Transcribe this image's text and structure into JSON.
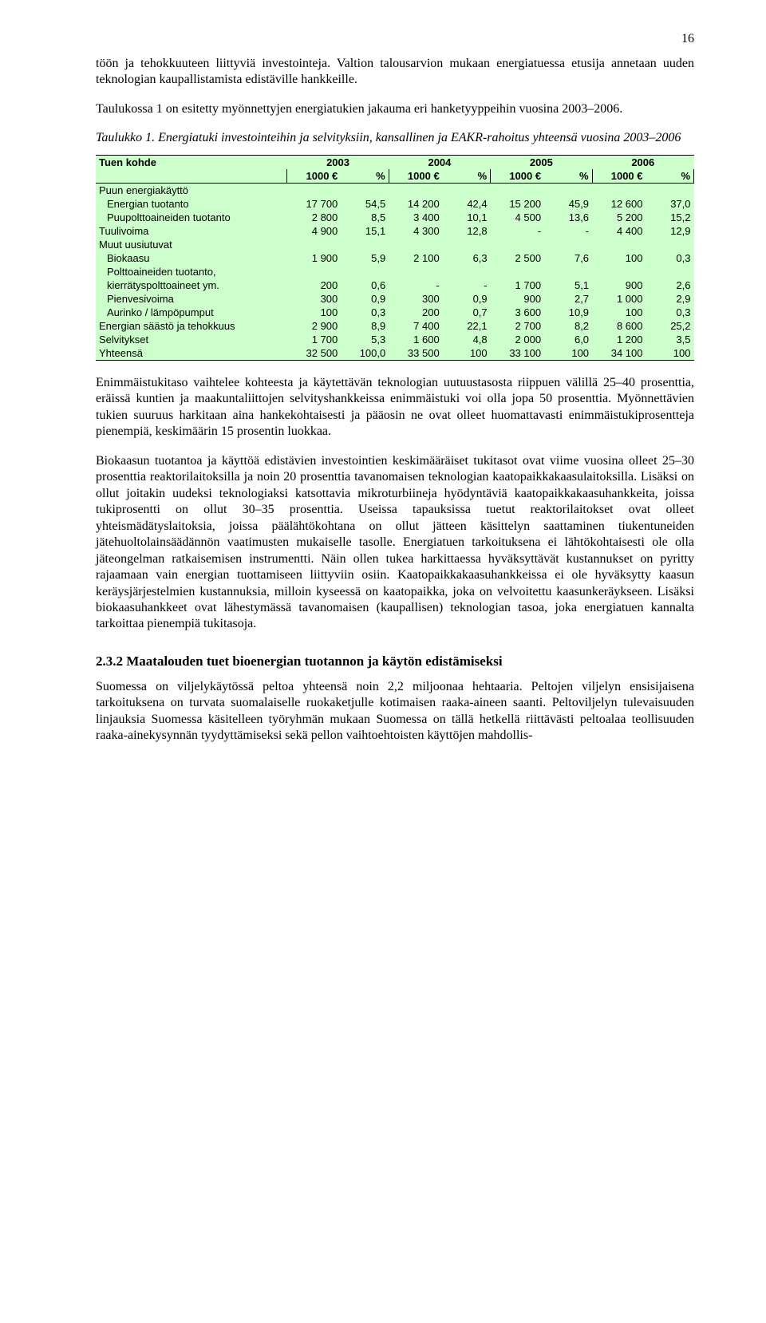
{
  "page_number": "16",
  "para1": "töön ja tehokkuuteen liittyviä investointeja. Valtion talousarvion mukaan energiatuessa etusija annetaan uuden teknologian kaupallistamista edistäville hankkeille.",
  "para2": "Taulukossa 1 on esitetty myönnettyjen energiatukien jakauma eri hanketyyppeihin vuosina 2003–2006.",
  "table_caption": "Taulukko 1. Energiatuki investointeihin ja selvityksiin, kansallinen ja EAKR-rahoitus yhteensä vuosina 2003–2006",
  "table": {
    "type": "table",
    "background_color": "#ccffcc",
    "border_color": "#000000",
    "font_family": "Arial",
    "font_size_pt": 10,
    "header_row1": {
      "c0": "Tuen kohde",
      "c1": "2003",
      "c2": "2004",
      "c3": "2005",
      "c4": "2006"
    },
    "header_row2": {
      "a": "1000 €",
      "b": "%"
    },
    "rows": [
      {
        "label": "Puun energiakäyttö",
        "indent": 0,
        "bold": false,
        "v": [
          "",
          "",
          "",
          "",
          "",
          "",
          "",
          ""
        ]
      },
      {
        "label": "Energian tuotanto",
        "indent": 1,
        "bold": false,
        "v": [
          "17 700",
          "54,5",
          "14 200",
          "42,4",
          "15 200",
          "45,9",
          "12 600",
          "37,0"
        ]
      },
      {
        "label": "Puupolttoaineiden tuotanto",
        "indent": 1,
        "bold": false,
        "v": [
          "2 800",
          "8,5",
          "3 400",
          "10,1",
          "4 500",
          "13,6",
          "5 200",
          "15,2"
        ]
      },
      {
        "label": "Tuulivoima",
        "indent": 0,
        "bold": false,
        "v": [
          "4 900",
          "15,1",
          "4 300",
          "12,8",
          "-",
          "-",
          "4 400",
          "12,9"
        ]
      },
      {
        "label": "Muut uusiutuvat",
        "indent": 0,
        "bold": false,
        "v": [
          "",
          "",
          "",
          "",
          "",
          "",
          "",
          ""
        ]
      },
      {
        "label": "Biokaasu",
        "indent": 1,
        "bold": false,
        "v": [
          "1 900",
          "5,9",
          "2 100",
          "6,3",
          "2 500",
          "7,6",
          "100",
          "0,3"
        ]
      },
      {
        "label": "Polttoaineiden tuotanto,",
        "indent": 1,
        "bold": false,
        "v": [
          "",
          "",
          "",
          "",
          "",
          "",
          "",
          ""
        ]
      },
      {
        "label": "kierrätyspolttoaineet ym.",
        "indent": 1,
        "bold": false,
        "v": [
          "200",
          "0,6",
          "-",
          "-",
          "1 700",
          "5,1",
          "900",
          "2,6"
        ]
      },
      {
        "label": "Pienvesivoima",
        "indent": 1,
        "bold": false,
        "v": [
          "300",
          "0,9",
          "300",
          "0,9",
          "900",
          "2,7",
          "1 000",
          "2,9"
        ]
      },
      {
        "label": "Aurinko / lämpöpumput",
        "indent": 1,
        "bold": false,
        "v": [
          "100",
          "0,3",
          "200",
          "0,7",
          "3 600",
          "10,9",
          "100",
          "0,3"
        ]
      },
      {
        "label": "Energian säästö ja tehokkuus",
        "indent": 0,
        "bold": false,
        "v": [
          "2 900",
          "8,9",
          "7 400",
          "22,1",
          "2 700",
          "8,2",
          "8 600",
          "25,2"
        ]
      },
      {
        "label": "Selvitykset",
        "indent": 0,
        "bold": false,
        "v": [
          "1 700",
          "5,3",
          "1 600",
          "4,8",
          "2 000",
          "6,0",
          "1 200",
          "3,5"
        ]
      },
      {
        "label": "Yhteensä",
        "indent": 0,
        "bold": false,
        "v": [
          "32 500",
          "100,0",
          "33 500",
          "100",
          "33 100",
          "100",
          "34 100",
          "100"
        ]
      }
    ],
    "col_widths_pct": [
      30,
      9,
      8,
      9,
      8,
      9,
      8,
      9,
      8
    ]
  },
  "para3": "Enimmäistukitaso vaihtelee kohteesta ja käytettävän teknologian uutuustasosta riippuen välillä 25–40 prosenttia, eräissä kuntien ja maakuntaliittojen selvityshankkeissa enimmäistuki voi olla jopa 50 prosenttia. Myönnettävien tukien suuruus harkitaan aina hankekohtaisesti ja pääosin ne ovat olleet huomattavasti enimmäistukiprosentteja pienempiä, keskimäärin 15 prosentin luokkaa.",
  "para4": "Biokaasun tuotantoa ja käyttöä edistävien investointien keskimääräiset tukitasot ovat viime vuosina olleet 25–30 prosenttia reaktorilaitoksilla ja noin 20 prosenttia tavanomaisen teknologian kaatopaikkakaasulaitoksilla. Lisäksi on ollut joitakin uudeksi teknologiaksi katsottavia mikroturbiineja hyödyntäviä kaatopaikkakaasuhankkeita, joissa tukiprosentti on ollut 30–35 prosenttia. Useissa tapauksissa tuetut reaktorilaitokset ovat olleet yhteismädätyslaitoksia, joissa päälähtökohtana on ollut jätteen käsittelyn saattaminen tiukentuneiden jätehuoltolainsäädännön vaatimusten mukaiselle tasolle. Energiatuen tarkoituksena ei lähtökohtaisesti ole olla jäteongelman ratkaisemisen instrumentti. Näin ollen tukea harkittaessa hyväksyttävät kustannukset on pyritty rajaamaan vain energian tuottamiseen liittyviin osiin. Kaatopaikkakaasuhankkeissa ei ole hyväksytty kaasun keräysjärjestelmien kustannuksia, milloin kyseessä on kaatopaikka, joka on velvoitettu kaasunkeräykseen. Lisäksi biokaasuhankkeet ovat lähestymässä tavanomaisen (kaupallisen) teknologian tasoa, joka energiatuen kannalta tarkoittaa pienempiä tukitasoja.",
  "heading": "2.3.2 Maatalouden tuet bioenergian tuotannon ja käytön edistämiseksi",
  "para5": "Suomessa on viljelykäytössä peltoa yhteensä noin 2,2 miljoonaa hehtaaria. Peltojen viljelyn ensisijaisena tarkoituksena on turvata suomalaiselle ruokaketjulle kotimaisen raaka-aineen saanti. Peltoviljelyn tulevaisuuden linjauksia Suomessa käsitelleen työryhmän mukaan Suomessa on tällä hetkellä riittävästi peltoalaa teollisuuden raaka-ainekysynnän tyydyttämiseksi sekä pellon vaihtoehtoisten käyttöjen mahdollis-"
}
